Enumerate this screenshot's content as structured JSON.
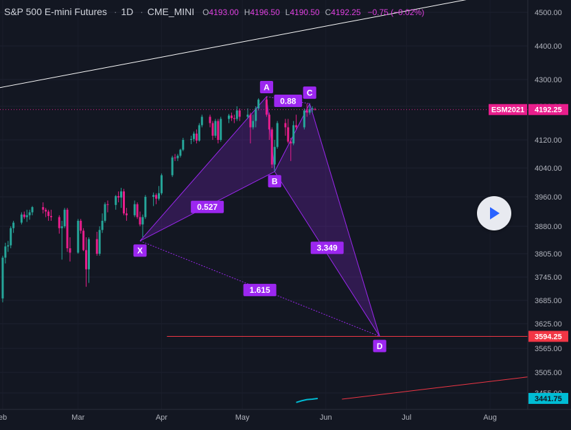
{
  "header": {
    "symbol": "S&P 500 E-mini Futures",
    "interval": "1D",
    "exchange": "CME_MINI",
    "ohlc": [
      {
        "k": "O",
        "v": "4193.00"
      },
      {
        "k": "H",
        "v": "4196.50"
      },
      {
        "k": "L",
        "v": "4190.50"
      },
      {
        "k": "C",
        "v": "4192.25"
      }
    ],
    "change": "−0.75 (−0.02%)"
  },
  "price_axis": {
    "ticks": [
      "4500.00",
      "4400.00",
      "4300.00",
      "4200.00",
      "4120.00",
      "4040.00",
      "3960.00",
      "3880.00",
      "3805.00",
      "3745.00",
      "3685.00",
      "3625.00",
      "3565.00",
      "3505.00",
      "3455.00"
    ],
    "labels": [
      {
        "id": "symbol-price",
        "text": "ESM2021",
        "value": "4192.25",
        "color": "#e91e8c"
      },
      {
        "id": "target-price",
        "value": "3594.25",
        "color": "#f23645"
      },
      {
        "id": "indicator-price",
        "value": "3441.75",
        "color": "#00bcd4"
      }
    ]
  },
  "time_axis": {
    "ticks": [
      "eb",
      "Mar",
      "Apr",
      "May",
      "Jun",
      "Jul",
      "Aug"
    ]
  },
  "pattern": {
    "points": [
      "X",
      "A",
      "B",
      "C",
      "D"
    ],
    "ratios": [
      "0.88",
      "0.527",
      "3.349",
      "1.615"
    ]
  },
  "colors": {
    "background": "#131722",
    "up": "#26a69a",
    "down": "#e91e8c",
    "pattern": "#9c27f0",
    "axis_text": "#b2b5be"
  },
  "icons": {
    "play": "play-icon"
  },
  "chart_data": {
    "type": "candlestick",
    "title": "S&P 500 E-mini Futures",
    "interval": "1D",
    "ylim": [
      3420,
      4540
    ],
    "xlim": [
      "2021-01-31",
      "2021-08-15"
    ],
    "last_price": 4192.25,
    "candles": [
      {
        "d": "2021-02-01",
        "o": 3690,
        "h": 3800,
        "l": 3680,
        "c": 3795
      },
      {
        "d": "2021-02-02",
        "o": 3795,
        "h": 3835,
        "l": 3780,
        "c": 3825
      },
      {
        "d": "2021-02-03",
        "o": 3825,
        "h": 3840,
        "l": 3810,
        "c": 3828
      },
      {
        "d": "2021-02-04",
        "o": 3828,
        "h": 3880,
        "l": 3820,
        "c": 3875
      },
      {
        "d": "2021-02-05",
        "o": 3875,
        "h": 3895,
        "l": 3862,
        "c": 3890
      },
      {
        "d": "2021-02-08",
        "o": 3890,
        "h": 3918,
        "l": 3885,
        "c": 3912
      },
      {
        "d": "2021-02-09",
        "o": 3912,
        "h": 3920,
        "l": 3900,
        "c": 3905
      },
      {
        "d": "2021-02-10",
        "o": 3905,
        "h": 3925,
        "l": 3892,
        "c": 3910
      },
      {
        "d": "2021-02-11",
        "o": 3910,
        "h": 3925,
        "l": 3898,
        "c": 3918
      },
      {
        "d": "2021-02-12",
        "o": 3918,
        "h": 3935,
        "l": 3910,
        "c": 3932
      },
      {
        "d": "2021-02-16",
        "o": 3932,
        "h": 3945,
        "l": 3915,
        "c": 3925
      },
      {
        "d": "2021-02-17",
        "o": 3925,
        "h": 3930,
        "l": 3905,
        "c": 3920
      },
      {
        "d": "2021-02-18",
        "o": 3920,
        "h": 3925,
        "l": 3895,
        "c": 3908
      },
      {
        "d": "2021-02-19",
        "o": 3908,
        "h": 3925,
        "l": 3895,
        "c": 3905
      },
      {
        "d": "2021-02-22",
        "o": 3905,
        "h": 3910,
        "l": 3860,
        "c": 3875
      },
      {
        "d": "2021-02-23",
        "o": 3875,
        "h": 3895,
        "l": 3790,
        "c": 3880
      },
      {
        "d": "2021-02-24",
        "o": 3880,
        "h": 3930,
        "l": 3875,
        "c": 3925
      },
      {
        "d": "2021-02-25",
        "o": 3925,
        "h": 3930,
        "l": 3810,
        "c": 3820
      },
      {
        "d": "2021-02-26",
        "o": 3820,
        "h": 3850,
        "l": 3785,
        "c": 3808
      },
      {
        "d": "2021-03-01",
        "o": 3808,
        "h": 3900,
        "l": 3805,
        "c": 3895
      },
      {
        "d": "2021-03-02",
        "o": 3895,
        "h": 3900,
        "l": 3860,
        "c": 3868
      },
      {
        "d": "2021-03-03",
        "o": 3868,
        "h": 3875,
        "l": 3812,
        "c": 3815
      },
      {
        "d": "2021-03-04",
        "o": 3815,
        "h": 3850,
        "l": 3720,
        "c": 3765
      },
      {
        "d": "2021-03-05",
        "o": 3765,
        "h": 3850,
        "l": 3730,
        "c": 3845
      },
      {
        "d": "2021-03-08",
        "o": 3845,
        "h": 3865,
        "l": 3800,
        "c": 3805
      },
      {
        "d": "2021-03-09",
        "o": 3805,
        "h": 3880,
        "l": 3800,
        "c": 3870
      },
      {
        "d": "2021-03-10",
        "o": 3870,
        "h": 3915,
        "l": 3862,
        "c": 3895
      },
      {
        "d": "2021-03-11",
        "o": 3895,
        "h": 3945,
        "l": 3890,
        "c": 3940
      },
      {
        "d": "2021-03-12",
        "o": 3940,
        "h": 3950,
        "l": 3918,
        "c": 3938
      },
      {
        "d": "2021-03-15",
        "o": 3938,
        "h": 3965,
        "l": 3925,
        "c": 3962
      },
      {
        "d": "2021-03-16",
        "o": 3962,
        "h": 3975,
        "l": 3945,
        "c": 3958
      },
      {
        "d": "2021-03-17",
        "o": 3958,
        "h": 3985,
        "l": 3930,
        "c": 3975
      },
      {
        "d": "2021-03-18",
        "o": 3975,
        "h": 3982,
        "l": 3910,
        "c": 3915
      },
      {
        "d": "2021-03-19",
        "o": 3915,
        "h": 3930,
        "l": 3895,
        "c": 3910
      },
      {
        "d": "2021-03-22",
        "o": 3910,
        "h": 3950,
        "l": 3905,
        "c": 3940
      },
      {
        "d": "2021-03-23",
        "o": 3940,
        "h": 3945,
        "l": 3900,
        "c": 3905
      },
      {
        "d": "2021-03-24",
        "o": 3905,
        "h": 3920,
        "l": 3880,
        "c": 3885
      },
      {
        "d": "2021-03-25",
        "o": 3885,
        "h": 3912,
        "l": 3850,
        "c": 3905
      },
      {
        "d": "2021-03-26",
        "o": 3905,
        "h": 3965,
        "l": 3900,
        "c": 3960
      },
      {
        "d": "2021-03-29",
        "o": 3960,
        "h": 3972,
        "l": 3935,
        "c": 3965
      },
      {
        "d": "2021-03-30",
        "o": 3965,
        "h": 3970,
        "l": 3940,
        "c": 3955
      },
      {
        "d": "2021-03-31",
        "o": 3955,
        "h": 3990,
        "l": 3950,
        "c": 3970
      },
      {
        "d": "2021-04-01",
        "o": 3970,
        "h": 4025,
        "l": 3965,
        "c": 4020
      },
      {
        "d": "2021-04-05",
        "o": 4020,
        "h": 4075,
        "l": 4015,
        "c": 4070
      },
      {
        "d": "2021-04-06",
        "o": 4070,
        "h": 4080,
        "l": 4060,
        "c": 4068
      },
      {
        "d": "2021-04-07",
        "o": 4068,
        "h": 4080,
        "l": 4060,
        "c": 4075
      },
      {
        "d": "2021-04-08",
        "o": 4075,
        "h": 4095,
        "l": 4070,
        "c": 4092
      },
      {
        "d": "2021-04-09",
        "o": 4092,
        "h": 4125,
        "l": 4088,
        "c": 4120
      },
      {
        "d": "2021-04-12",
        "o": 4120,
        "h": 4130,
        "l": 4108,
        "c": 4122
      },
      {
        "d": "2021-04-13",
        "o": 4122,
        "h": 4140,
        "l": 4115,
        "c": 4135
      },
      {
        "d": "2021-04-14",
        "o": 4135,
        "h": 4145,
        "l": 4110,
        "c": 4118
      },
      {
        "d": "2021-04-15",
        "o": 4118,
        "h": 4160,
        "l": 4115,
        "c": 4155
      },
      {
        "d": "2021-04-16",
        "o": 4155,
        "h": 4180,
        "l": 4150,
        "c": 4175
      },
      {
        "d": "2021-04-19",
        "o": 4175,
        "h": 4180,
        "l": 4150,
        "c": 4160
      },
      {
        "d": "2021-04-20",
        "o": 4160,
        "h": 4165,
        "l": 4120,
        "c": 4130
      },
      {
        "d": "2021-04-21",
        "o": 4130,
        "h": 4170,
        "l": 4125,
        "c": 4165
      },
      {
        "d": "2021-04-22",
        "o": 4165,
        "h": 4170,
        "l": 4110,
        "c": 4120
      },
      {
        "d": "2021-04-23",
        "o": 4120,
        "h": 4175,
        "l": 4115,
        "c": 4170
      },
      {
        "d": "2021-04-26",
        "o": 4170,
        "h": 4182,
        "l": 4160,
        "c": 4178
      },
      {
        "d": "2021-04-27",
        "o": 4178,
        "h": 4185,
        "l": 4165,
        "c": 4172
      },
      {
        "d": "2021-04-28",
        "o": 4172,
        "h": 4180,
        "l": 4160,
        "c": 4170
      },
      {
        "d": "2021-04-29",
        "o": 4170,
        "h": 4200,
        "l": 4165,
        "c": 4190
      },
      {
        "d": "2021-04-30",
        "o": 4190,
        "h": 4195,
        "l": 4165,
        "c": 4175
      },
      {
        "d": "2021-05-03",
        "o": 4175,
        "h": 4195,
        "l": 4170,
        "c": 4180
      },
      {
        "d": "2021-05-04",
        "o": 4180,
        "h": 4185,
        "l": 4110,
        "c": 4150
      },
      {
        "d": "2021-05-05",
        "o": 4150,
        "h": 4180,
        "l": 4145,
        "c": 4165
      },
      {
        "d": "2021-05-06",
        "o": 4165,
        "h": 4200,
        "l": 4150,
        "c": 4195
      },
      {
        "d": "2021-05-07",
        "o": 4195,
        "h": 4230,
        "l": 4190,
        "c": 4225
      },
      {
        "d": "2021-05-10",
        "o": 4225,
        "h": 4236,
        "l": 4175,
        "c": 4180
      },
      {
        "d": "2021-05-11",
        "o": 4180,
        "h": 4185,
        "l": 4120,
        "c": 4145
      },
      {
        "d": "2021-05-12",
        "o": 4145,
        "h": 4150,
        "l": 4040,
        "c": 4050
      },
      {
        "d": "2021-05-13",
        "o": 4050,
        "h": 4120,
        "l": 4030,
        "c": 4100
      },
      {
        "d": "2021-05-14",
        "o": 4100,
        "h": 4165,
        "l": 4095,
        "c": 4160
      },
      {
        "d": "2021-05-17",
        "o": 4160,
        "h": 4170,
        "l": 4130,
        "c": 4150
      },
      {
        "d": "2021-05-18",
        "o": 4150,
        "h": 4170,
        "l": 4110,
        "c": 4115
      },
      {
        "d": "2021-05-19",
        "o": 4115,
        "h": 4125,
        "l": 4060,
        "c": 4110
      },
      {
        "d": "2021-05-20",
        "o": 4110,
        "h": 4165,
        "l": 4105,
        "c": 4155
      },
      {
        "d": "2021-05-21",
        "o": 4155,
        "h": 4180,
        "l": 4145,
        "c": 4150
      },
      {
        "d": "2021-05-24",
        "o": 4150,
        "h": 4195,
        "l": 4145,
        "c": 4190
      },
      {
        "d": "2021-05-25",
        "o": 4190,
        "h": 4210,
        "l": 4175,
        "c": 4185
      },
      {
        "d": "2021-05-26",
        "o": 4185,
        "h": 4205,
        "l": 4180,
        "c": 4193
      },
      {
        "d": "2021-05-27",
        "o": 4193,
        "h": 4200,
        "l": 4185,
        "c": 4195
      },
      {
        "d": "2021-05-28",
        "o": 4193,
        "h": 4196.5,
        "l": 4190.5,
        "c": 4192.25
      }
    ],
    "xabcd": {
      "X": {
        "d": "2021-03-24",
        "v": 3840
      },
      "A": {
        "d": "2021-05-10",
        "v": 4236
      },
      "B": {
        "d": "2021-05-13",
        "v": 4030
      },
      "C": {
        "d": "2021-05-26",
        "v": 4210
      },
      "D": {
        "d": "2021-06-21",
        "v": 3594.25
      }
    },
    "ratios": {
      "XAB": "0.527",
      "ABC": "0.88",
      "BCD": "3.349",
      "XAD": "1.615"
    },
    "lines": [
      {
        "name": "white-trendline",
        "color": "#ffffff",
        "from": {
          "d": "2021-01-31",
          "v": 4270
        },
        "to": {
          "d": "2021-07-28",
          "v": 4545
        }
      },
      {
        "name": "red-trendline",
        "color": "#f23645",
        "from": {
          "d": "2021-06-07",
          "v": 3440
        },
        "to": {
          "d": "2021-08-15",
          "v": 3494
        }
      },
      {
        "name": "target-line",
        "color": "#f23645",
        "from": {
          "d": "2021-04-03",
          "v": 3594.25
        },
        "to": {
          "d": "2021-08-15",
          "v": 3594.25
        }
      }
    ],
    "indicator": {
      "name": "cyan-indicator-line",
      "color": "#00bcd4",
      "points": [
        {
          "d": "2021-05-21",
          "v": 3432
        },
        {
          "d": "2021-05-23",
          "v": 3436
        },
        {
          "d": "2021-05-25",
          "v": 3439
        },
        {
          "d": "2021-05-27",
          "v": 3440
        },
        {
          "d": "2021-05-29",
          "v": 3441.75
        }
      ]
    }
  }
}
